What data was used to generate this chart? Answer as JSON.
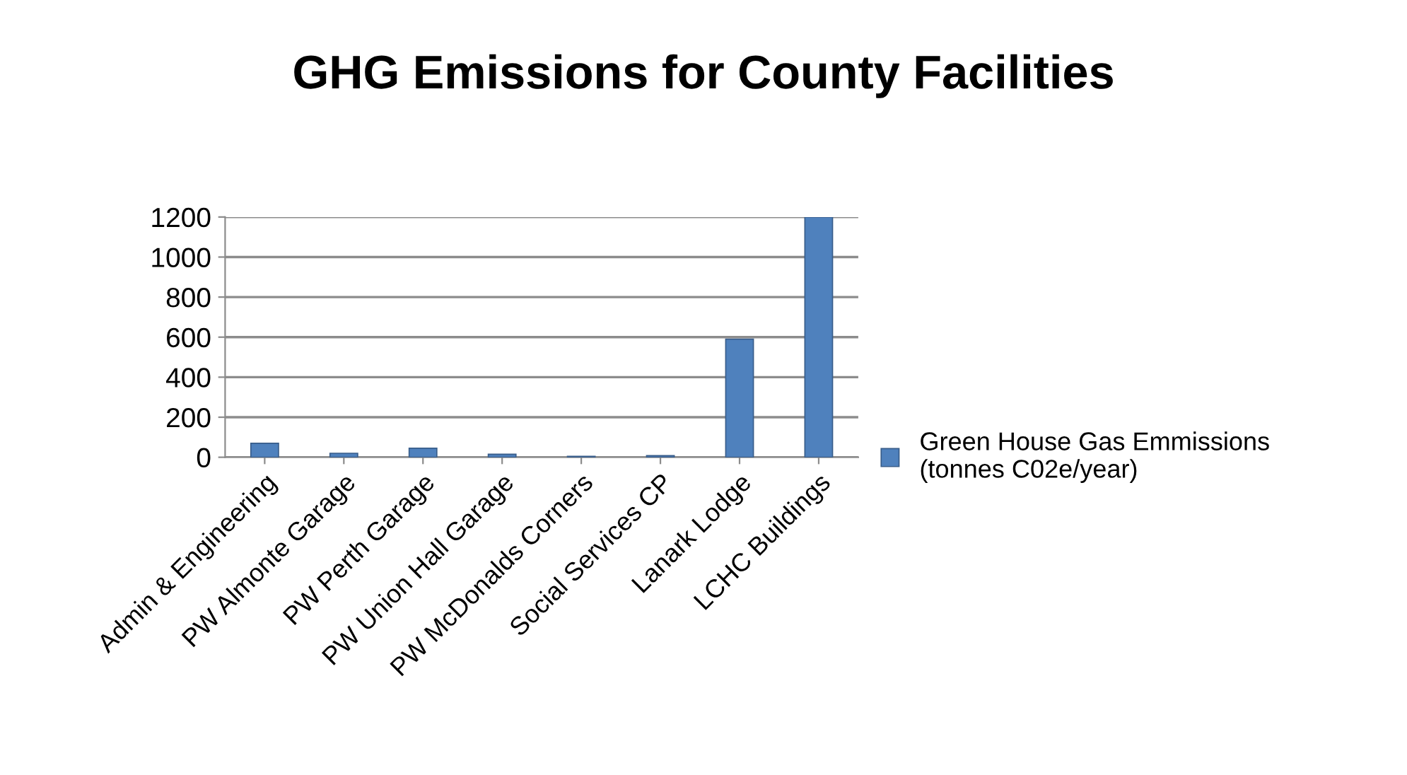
{
  "chart_data": {
    "type": "bar",
    "title": "GHG Emissions for County Facilities",
    "categories": [
      "Admin & Engineering",
      "PW Almonte Garage",
      "PW Perth Garage",
      "PW Union Hall Garage",
      "PW McDonalds Corners",
      "Social Services CP",
      "Lanark Lodge",
      "LCHC Buildings"
    ],
    "series": [
      {
        "name": "Green House Gas Emmissions\n(tonnes C02e/year)",
        "color": "#4f81bd",
        "values": [
          70,
          20,
          45,
          15,
          5,
          8,
          590,
          1200
        ]
      }
    ],
    "ylim": [
      0,
      1200
    ],
    "yticks": [
      0,
      200,
      400,
      600,
      800,
      1000,
      1200
    ],
    "grid": "y",
    "legend": "right"
  }
}
